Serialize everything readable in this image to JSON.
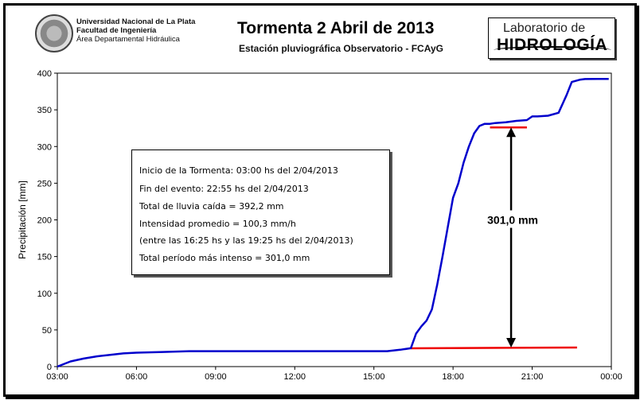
{
  "header": {
    "univ_line1": "Universidad Nacional de La Plata",
    "univ_line2": "Facultad de Ingeniería",
    "univ_line3": "Área Departamental Hidráulica",
    "lab_line1": "Laboratorio de",
    "lab_line2": "HIDROLOGÍA"
  },
  "chart_data": {
    "type": "line",
    "title": "Tormenta 2 Abril de 2013",
    "subtitle": "Estación pluviográfica Observatorio - FCAyG",
    "ylabel": "Precipitación [mm]",
    "xlabel": "",
    "ylim": [
      0,
      400
    ],
    "xlim_hours": [
      3,
      24
    ],
    "y_ticks": [
      0,
      50,
      100,
      150,
      200,
      250,
      300,
      350,
      400
    ],
    "x_ticks": [
      "03:00",
      "06:00",
      "09:00",
      "12:00",
      "15:00",
      "18:00",
      "21:00",
      "00:00"
    ],
    "grid": false,
    "series": [
      {
        "color": "#0000cc",
        "x_hours": [
          3.0,
          3.5,
          4.0,
          4.5,
          5.0,
          5.5,
          6.0,
          7.0,
          8.0,
          9.0,
          10.0,
          11.0,
          12.0,
          13.0,
          14.0,
          15.0,
          15.5,
          16.0,
          16.4,
          16.6,
          16.8,
          17.0,
          17.2,
          17.4,
          17.6,
          17.8,
          18.0,
          18.2,
          18.4,
          18.6,
          18.8,
          19.0,
          19.2,
          19.4,
          19.6,
          20.0,
          20.4,
          20.8,
          21.0,
          21.2,
          21.6,
          22.0,
          22.3,
          22.5,
          22.8,
          23.0,
          23.5,
          23.9
        ],
        "y_mm": [
          0,
          7,
          11,
          14,
          16,
          18,
          19,
          20,
          21,
          21,
          21,
          21,
          21,
          21,
          21,
          21,
          21,
          23,
          25,
          45,
          55,
          63,
          78,
          112,
          150,
          190,
          230,
          250,
          278,
          300,
          318,
          328,
          331,
          331,
          332,
          333,
          335,
          336,
          341,
          341,
          342,
          346,
          370,
          388,
          391,
          392,
          392.2,
          392.2
        ]
      }
    ],
    "reference_lines": {
      "color": "#ee0000",
      "lower": {
        "x_hours": [
          16.4,
          22.7
        ],
        "y_mm": [
          25,
          26
        ]
      },
      "upper": {
        "x_hours": [
          19.4,
          20.8
        ],
        "y_mm": [
          326,
          326
        ]
      }
    },
    "arrow": {
      "x_hour": 20.2,
      "y_from": 26,
      "y_to": 326
    },
    "arrow_label": "301,0 mm",
    "info": [
      "Inicio de la Tormenta:  03:00 hs del 2/04/2013",
      "Fin del evento:  22:55 hs del 2/04/2013",
      "Total de lluvia caída = 392,2 mm",
      "Intensidad promedio = 100,3 mm/h",
      "(entre las 16:25 hs y las 19:25 hs del 2/04/2013)",
      "Total período más intenso = 301,0 mm"
    ]
  }
}
